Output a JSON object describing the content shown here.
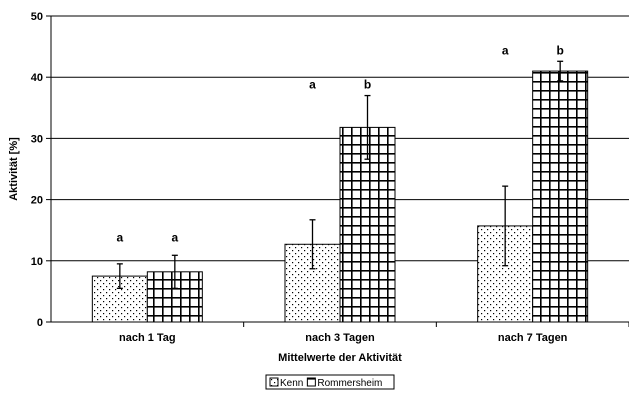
{
  "chart_data": {
    "type": "bar",
    "xlabel": "Mittelwerte der Aktivität",
    "ylabel": "Aktivität [%]",
    "ylim": [
      0,
      50
    ],
    "yticks": [
      0,
      10,
      20,
      30,
      40,
      50
    ],
    "grid": true,
    "legend_position": "bottom",
    "categories": [
      "nach 1 Tag",
      "nach 3 Tagen",
      "nach 7 Tagen"
    ],
    "series": [
      {
        "name": "Kenn",
        "pattern": "dots",
        "values": [
          7.5,
          12.7,
          15.7
        ],
        "errors": [
          2.0,
          4.0,
          6.5
        ],
        "labels": [
          "a",
          "a",
          "a"
        ]
      },
      {
        "name": "Rommersheim",
        "pattern": "grid",
        "values": [
          8.2,
          31.8,
          41.0
        ],
        "errors": [
          2.7,
          5.2,
          1.6
        ],
        "labels": [
          "a",
          "b",
          "b"
        ]
      }
    ]
  }
}
